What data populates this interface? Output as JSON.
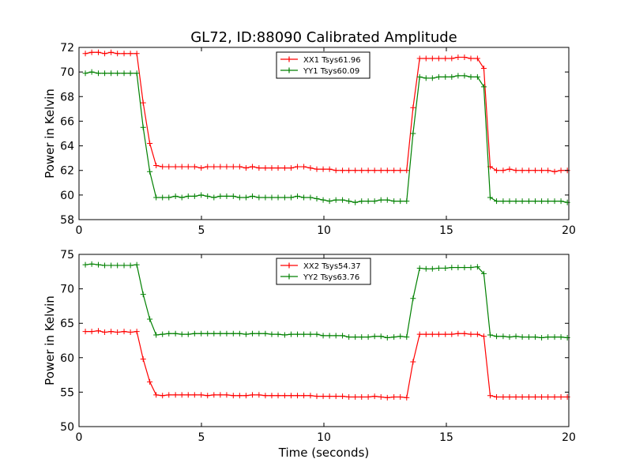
{
  "title": "GL72, ID:88090 Calibrated Amplitude",
  "xlabel": "Time (seconds)",
  "chart_data": [
    {
      "type": "line",
      "ylabel": "Power in Kelvin",
      "xlim": [
        0,
        20
      ],
      "ylim": [
        58,
        72
      ],
      "xticks": [
        0,
        5,
        10,
        15,
        20
      ],
      "yticks": [
        58,
        60,
        62,
        64,
        66,
        68,
        70,
        72
      ],
      "grid": false,
      "legend_position": "top-center",
      "x": [
        0.26,
        0.52,
        0.79,
        1.05,
        1.31,
        1.57,
        1.84,
        2.1,
        2.36,
        2.62,
        2.89,
        3.15,
        3.41,
        3.67,
        3.94,
        4.2,
        4.46,
        4.72,
        4.99,
        5.25,
        5.51,
        5.77,
        6.03,
        6.3,
        6.56,
        6.82,
        7.08,
        7.35,
        7.61,
        7.87,
        8.13,
        8.4,
        8.66,
        8.92,
        9.18,
        9.45,
        9.71,
        9.97,
        10.23,
        10.49,
        10.76,
        11.02,
        11.28,
        11.54,
        11.81,
        12.07,
        12.33,
        12.59,
        12.86,
        13.12,
        13.38,
        13.64,
        13.91,
        14.17,
        14.43,
        14.69,
        14.96,
        15.22,
        15.48,
        15.74,
        16.0,
        16.27,
        16.53,
        16.79,
        17.05,
        17.32,
        17.58,
        17.84,
        18.1,
        18.37,
        18.63,
        18.89,
        19.15,
        19.42,
        19.68,
        19.94
      ],
      "series": [
        {
          "name": "XX1 Tsys61.96",
          "color": "#ff0000",
          "values": [
            71.5,
            71.6,
            71.6,
            71.5,
            71.6,
            71.5,
            71.5,
            71.5,
            71.5,
            67.5,
            64.2,
            62.4,
            62.3,
            62.3,
            62.3,
            62.3,
            62.3,
            62.3,
            62.2,
            62.3,
            62.3,
            62.3,
            62.3,
            62.3,
            62.3,
            62.2,
            62.3,
            62.2,
            62.2,
            62.2,
            62.2,
            62.2,
            62.2,
            62.3,
            62.3,
            62.2,
            62.1,
            62.1,
            62.1,
            62.0,
            62.0,
            62.0,
            62.0,
            62.0,
            62.0,
            62.0,
            62.0,
            62.0,
            62.0,
            62.0,
            62.0,
            67.1,
            71.1,
            71.1,
            71.1,
            71.1,
            71.1,
            71.1,
            71.2,
            71.2,
            71.1,
            71.1,
            70.3,
            62.3,
            62.0,
            62.0,
            62.1,
            62.0,
            62.0,
            62.0,
            62.0,
            62.0,
            62.0,
            61.9,
            62.0,
            62.0
          ]
        },
        {
          "name": "YY1 Tsys60.09",
          "color": "#008000",
          "values": [
            69.9,
            70.0,
            69.9,
            69.9,
            69.9,
            69.9,
            69.9,
            69.9,
            69.9,
            65.5,
            61.9,
            59.8,
            59.8,
            59.8,
            59.9,
            59.8,
            59.9,
            59.9,
            60.0,
            59.9,
            59.8,
            59.9,
            59.9,
            59.9,
            59.8,
            59.8,
            59.9,
            59.8,
            59.8,
            59.8,
            59.8,
            59.8,
            59.8,
            59.9,
            59.8,
            59.8,
            59.7,
            59.6,
            59.5,
            59.6,
            59.6,
            59.5,
            59.4,
            59.5,
            59.5,
            59.5,
            59.6,
            59.6,
            59.5,
            59.5,
            59.5,
            65.0,
            69.6,
            69.5,
            69.5,
            69.6,
            69.6,
            69.6,
            69.7,
            69.7,
            69.6,
            69.6,
            68.8,
            59.8,
            59.5,
            59.5,
            59.5,
            59.5,
            59.5,
            59.5,
            59.5,
            59.5,
            59.5,
            59.5,
            59.5,
            59.4
          ]
        }
      ]
    },
    {
      "type": "line",
      "ylabel": "Power in Kelvin",
      "xlabel": "Time (seconds)",
      "xlim": [
        0,
        20
      ],
      "ylim": [
        50,
        75
      ],
      "xticks": [
        0,
        5,
        10,
        15,
        20
      ],
      "yticks": [
        50,
        55,
        60,
        65,
        70,
        75
      ],
      "grid": false,
      "legend_position": "top-center",
      "x": [
        0.26,
        0.52,
        0.79,
        1.05,
        1.31,
        1.57,
        1.84,
        2.1,
        2.36,
        2.62,
        2.89,
        3.15,
        3.41,
        3.67,
        3.94,
        4.2,
        4.46,
        4.72,
        4.99,
        5.25,
        5.51,
        5.77,
        6.03,
        6.3,
        6.56,
        6.82,
        7.08,
        7.35,
        7.61,
        7.87,
        8.13,
        8.4,
        8.66,
        8.92,
        9.18,
        9.45,
        9.71,
        9.97,
        10.23,
        10.49,
        10.76,
        11.02,
        11.28,
        11.54,
        11.81,
        12.07,
        12.33,
        12.59,
        12.86,
        13.12,
        13.38,
        13.64,
        13.91,
        14.17,
        14.43,
        14.69,
        14.96,
        15.22,
        15.48,
        15.74,
        16.0,
        16.27,
        16.53,
        16.79,
        17.05,
        17.32,
        17.58,
        17.84,
        18.1,
        18.37,
        18.63,
        18.89,
        19.15,
        19.42,
        19.68,
        19.94
      ],
      "series": [
        {
          "name": "XX2 Tsys54.37",
          "color": "#ff0000",
          "values": [
            63.8,
            63.8,
            63.9,
            63.7,
            63.8,
            63.7,
            63.8,
            63.7,
            63.8,
            59.8,
            56.5,
            54.6,
            54.5,
            54.6,
            54.6,
            54.6,
            54.6,
            54.6,
            54.6,
            54.5,
            54.6,
            54.6,
            54.6,
            54.5,
            54.5,
            54.5,
            54.6,
            54.6,
            54.5,
            54.5,
            54.5,
            54.5,
            54.5,
            54.5,
            54.5,
            54.5,
            54.4,
            54.4,
            54.4,
            54.4,
            54.4,
            54.3,
            54.3,
            54.3,
            54.3,
            54.4,
            54.3,
            54.2,
            54.3,
            54.3,
            54.2,
            59.4,
            63.4,
            63.4,
            63.4,
            63.4,
            63.4,
            63.4,
            63.5,
            63.5,
            63.4,
            63.4,
            63.1,
            54.5,
            54.3,
            54.3,
            54.3,
            54.3,
            54.3,
            54.3,
            54.3,
            54.3,
            54.3,
            54.3,
            54.3,
            54.3
          ]
        },
        {
          "name": "YY2 Tsys63.76",
          "color": "#008000",
          "values": [
            73.5,
            73.6,
            73.5,
            73.4,
            73.4,
            73.4,
            73.4,
            73.4,
            73.5,
            69.2,
            65.6,
            63.3,
            63.4,
            63.5,
            63.5,
            63.4,
            63.4,
            63.5,
            63.5,
            63.5,
            63.5,
            63.5,
            63.5,
            63.5,
            63.5,
            63.4,
            63.5,
            63.5,
            63.5,
            63.4,
            63.4,
            63.3,
            63.4,
            63.4,
            63.4,
            63.4,
            63.4,
            63.2,
            63.2,
            63.2,
            63.2,
            63.0,
            63.0,
            63.0,
            63.0,
            63.1,
            63.1,
            62.9,
            63.0,
            63.1,
            63.0,
            68.6,
            73.0,
            72.9,
            72.9,
            73.0,
            73.0,
            73.1,
            73.1,
            73.1,
            73.1,
            73.2,
            72.2,
            63.3,
            63.1,
            63.1,
            63.0,
            63.1,
            63.0,
            63.0,
            63.0,
            62.9,
            63.0,
            63.0,
            63.0,
            62.9
          ]
        }
      ]
    }
  ]
}
